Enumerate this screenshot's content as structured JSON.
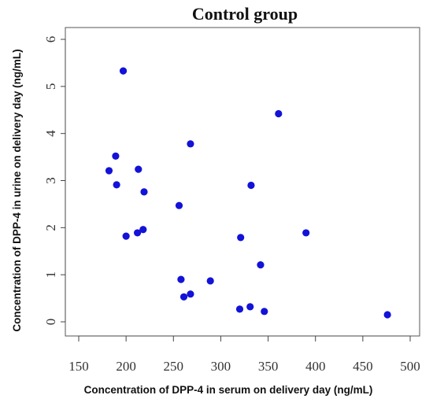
{
  "chart_data": {
    "type": "scatter",
    "title": "Control group",
    "xlabel": "Concentration of DPP-4 in serum on delivery day (ng/mL)",
    "ylabel": "Concentration of DPP-4 in urine on delivery day (ng/mL)",
    "xlim": [
      150,
      500
    ],
    "ylim": [
      0,
      6
    ],
    "xticks": [
      "150",
      "200",
      "250",
      "300",
      "350",
      "400",
      "450",
      "500"
    ],
    "yticks": [
      "0",
      "1",
      "2",
      "3",
      "4",
      "5",
      "6"
    ],
    "grid": false,
    "legend": "none",
    "color": "#1212d8",
    "points": [
      {
        "x": 197,
        "y": 5.33
      },
      {
        "x": 361,
        "y": 4.42
      },
      {
        "x": 268,
        "y": 3.78
      },
      {
        "x": 189,
        "y": 3.52
      },
      {
        "x": 213,
        "y": 3.24
      },
      {
        "x": 182,
        "y": 3.21
      },
      {
        "x": 190,
        "y": 2.91
      },
      {
        "x": 332,
        "y": 2.9
      },
      {
        "x": 219,
        "y": 2.76
      },
      {
        "x": 256,
        "y": 2.47
      },
      {
        "x": 218,
        "y": 1.96
      },
      {
        "x": 212,
        "y": 1.89
      },
      {
        "x": 390,
        "y": 1.89
      },
      {
        "x": 200,
        "y": 1.82
      },
      {
        "x": 321,
        "y": 1.79
      },
      {
        "x": 342,
        "y": 1.21
      },
      {
        "x": 258,
        "y": 0.9
      },
      {
        "x": 289,
        "y": 0.87
      },
      {
        "x": 268,
        "y": 0.59
      },
      {
        "x": 261,
        "y": 0.53
      },
      {
        "x": 331,
        "y": 0.32
      },
      {
        "x": 320,
        "y": 0.27
      },
      {
        "x": 346,
        "y": 0.22
      },
      {
        "x": 476,
        "y": 0.15
      }
    ]
  }
}
